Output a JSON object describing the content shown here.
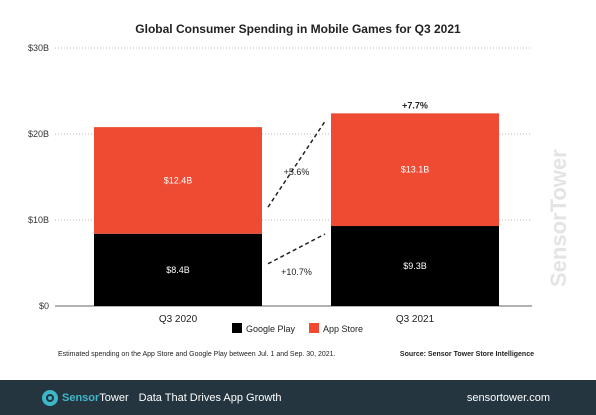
{
  "chart_data": {
    "type": "bar",
    "stacked": true,
    "title": "Global Consumer Spending in Mobile Games for Q3 2021",
    "categories": [
      "Q3 2020",
      "Q3 2021"
    ],
    "series": [
      {
        "name": "Google Play",
        "values": [
          8.4,
          9.3
        ],
        "labels": [
          "$8.4B",
          "$9.3B"
        ],
        "color": "#000000"
      },
      {
        "name": "App Store",
        "values": [
          12.4,
          13.1
        ],
        "labels": [
          "$12.4B",
          "$13.1B"
        ],
        "color": "#ef4a32"
      }
    ],
    "ylim": [
      0,
      30
    ],
    "yticks": [
      0,
      10,
      20,
      30
    ],
    "ytick_labels": [
      "$0",
      "$10B",
      "$20B",
      "$30B"
    ],
    "grid": true,
    "legend": "bottom-center",
    "growth": {
      "total": "+7.7%",
      "app_store": "+5.6%",
      "google_play": "+10.7%"
    }
  },
  "footnote": "Estimated spending on the App Store and Google Play between Jul. 1 and Sep. 30, 2021.",
  "source": "Source: Sensor Tower Store Intelligence",
  "watermark": "SensorTower",
  "footer": {
    "logo_sensor": "Sensor",
    "logo_tower": "Tower",
    "tagline": "Data That Drives App Growth",
    "url": "sensortower.com"
  }
}
